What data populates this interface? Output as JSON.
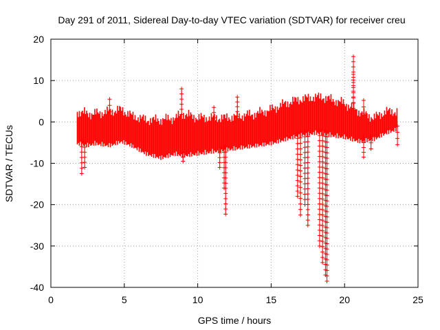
{
  "chart_data": {
    "type": "scatter",
    "title": "Day 291 of 2011, Sidereal Day-to-day VTEC variation (SDTVAR) for receiver creu",
    "xlabel": "GPS time / hours",
    "ylabel": "SDTVAR / TECUs",
    "xlim": [
      0,
      25
    ],
    "ylim": [
      -40,
      20
    ],
    "x_ticks": [
      0,
      5,
      10,
      15,
      20,
      25
    ],
    "y_ticks": [
      -40,
      -30,
      -20,
      -10,
      0,
      10,
      20
    ],
    "x_tick_labels": [
      "0",
      "5",
      "10",
      "15",
      "20",
      "25"
    ],
    "y_tick_labels": [
      "-40",
      "-30",
      "-20",
      "-10",
      "0",
      "10",
      "20"
    ],
    "grid": true,
    "legend": "none",
    "series": [
      {
        "name": "SDTVAR",
        "color": "#ff0000",
        "marker": "plus",
        "band_x": [
          1.8,
          2.5,
          3.0,
          4.0,
          4.8,
          5.5,
          6.5,
          7.5,
          8.5,
          9.0,
          10.0,
          11.0,
          12.0,
          13.0,
          14.0,
          15.0,
          16.0,
          17.0,
          18.0,
          18.5,
          19.0,
          20.0,
          21.0,
          22.0,
          22.8,
          23.6
        ],
        "band_upper": [
          2.5,
          2.0,
          2.0,
          2.5,
          3.0,
          1.5,
          0.5,
          0.5,
          1.0,
          2.0,
          1.0,
          1.0,
          1.0,
          1.5,
          2.0,
          3.0,
          4.5,
          5.5,
          6.0,
          6.0,
          5.5,
          4.5,
          2.5,
          1.0,
          2.5,
          2.5
        ],
        "band_lower": [
          -4.5,
          -5.0,
          -4.5,
          -5.0,
          -4.0,
          -5.0,
          -7.0,
          -8.0,
          -7.0,
          -7.5,
          -7.0,
          -6.5,
          -6.0,
          -5.5,
          -5.0,
          -4.5,
          -3.5,
          -2.5,
          -2.0,
          -2.0,
          -2.5,
          -3.0,
          -4.0,
          -3.5,
          -2.0,
          -1.0
        ],
        "spikes": [
          {
            "x": 2.1,
            "y": -12.5
          },
          {
            "x": 2.3,
            "y": -11.0
          },
          {
            "x": 4.0,
            "y": 5.5
          },
          {
            "x": 8.9,
            "y": 8.0
          },
          {
            "x": 9.0,
            "y": -9.5
          },
          {
            "x": 11.1,
            "y": 3.5
          },
          {
            "x": 11.5,
            "y": -11.0
          },
          {
            "x": 11.8,
            "y": -16.0
          },
          {
            "x": 11.9,
            "y": -22.3
          },
          {
            "x": 12.7,
            "y": 6.0
          },
          {
            "x": 16.8,
            "y": -18.0
          },
          {
            "x": 17.0,
            "y": -22.5
          },
          {
            "x": 17.3,
            "y": -20.0
          },
          {
            "x": 17.5,
            "y": -25.0
          },
          {
            "x": 18.3,
            "y": -30.0
          },
          {
            "x": 18.5,
            "y": -34.0
          },
          {
            "x": 18.7,
            "y": -37.0
          },
          {
            "x": 18.8,
            "y": -38.5
          },
          {
            "x": 20.6,
            "y": 15.8
          },
          {
            "x": 20.6,
            "y": 11.5
          },
          {
            "x": 21.3,
            "y": -8.5
          },
          {
            "x": 21.3,
            "y": 5.2
          },
          {
            "x": 21.8,
            "y": -6.5
          },
          {
            "x": 23.6,
            "y": -5.5
          }
        ]
      }
    ]
  }
}
